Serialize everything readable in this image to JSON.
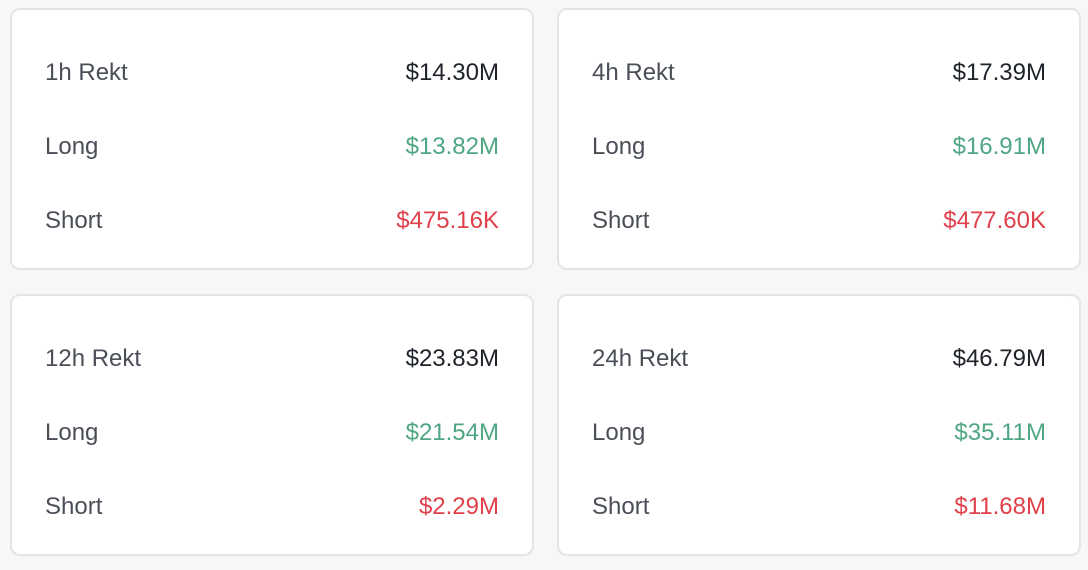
{
  "cards": [
    {
      "title": "1h Rekt",
      "total": "$14.30M",
      "long_label": "Long",
      "long": "$13.82M",
      "short_label": "Short",
      "short": "$475.16K"
    },
    {
      "title": "4h Rekt",
      "total": "$17.39M",
      "long_label": "Long",
      "long": "$16.91M",
      "short_label": "Short",
      "short": "$477.60K"
    },
    {
      "title": "12h Rekt",
      "total": "$23.83M",
      "long_label": "Long",
      "long": "$21.54M",
      "short_label": "Short",
      "short": "$2.29M"
    },
    {
      "title": "24h Rekt",
      "total": "$46.79M",
      "long_label": "Long",
      "long": "$35.11M",
      "short_label": "Short",
      "short": "$11.68M"
    }
  ]
}
